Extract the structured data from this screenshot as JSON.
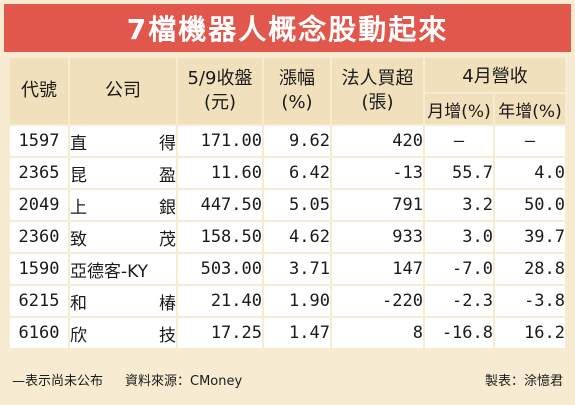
{
  "title": "7檔機器人概念股動起來",
  "headers": {
    "code": "代號",
    "company": "公司",
    "close_price_line1": "5/9收盤",
    "close_price_line2": "(元)",
    "change_line1": "漲幅",
    "change_line2": "(%)",
    "inst_line1": "法人買超",
    "inst_line2": "(張)",
    "revenue_group": "4月營收",
    "revenue_mom": "月增(%)",
    "revenue_yoy": "年增(%)"
  },
  "rows": [
    {
      "code": "1597",
      "name": [
        "直",
        "得"
      ],
      "close": "171.00",
      "change": "9.62",
      "inst": "420",
      "mom": "—",
      "yoy": "—"
    },
    {
      "code": "2365",
      "name": [
        "昆",
        "盈"
      ],
      "close": "11.60",
      "change": "6.42",
      "inst": "-13",
      "mom": "55.7",
      "yoy": "4.0"
    },
    {
      "code": "2049",
      "name": [
        "上",
        "銀"
      ],
      "close": "447.50",
      "change": "5.05",
      "inst": "791",
      "mom": "3.2",
      "yoy": "50.0"
    },
    {
      "code": "2360",
      "name": [
        "致",
        "茂"
      ],
      "close": "158.50",
      "change": "4.62",
      "inst": "933",
      "mom": "3.0",
      "yoy": "39.7"
    },
    {
      "code": "1590",
      "name": [
        "亞德客-KY"
      ],
      "close": "503.00",
      "change": "3.71",
      "inst": "147",
      "mom": "-7.0",
      "yoy": "28.8"
    },
    {
      "code": "6215",
      "name": [
        "和",
        "椿"
      ],
      "close": "21.40",
      "change": "1.90",
      "inst": "-220",
      "mom": "-2.3",
      "yoy": "-3.8"
    },
    {
      "code": "6160",
      "name": [
        "欣",
        "技"
      ],
      "close": "17.25",
      "change": "1.47",
      "inst": "8",
      "mom": "-16.8",
      "yoy": "16.2"
    }
  ],
  "footer": {
    "note": "—表示尚未公布",
    "source": "資料來源：CMoney",
    "credit": "製表：涂憶君"
  },
  "colors": {
    "title_bg": "#e2574c",
    "card_bg": "#f7ecd2",
    "header_bg": "#f0e0bb",
    "cell_bg": "#ffffff"
  }
}
